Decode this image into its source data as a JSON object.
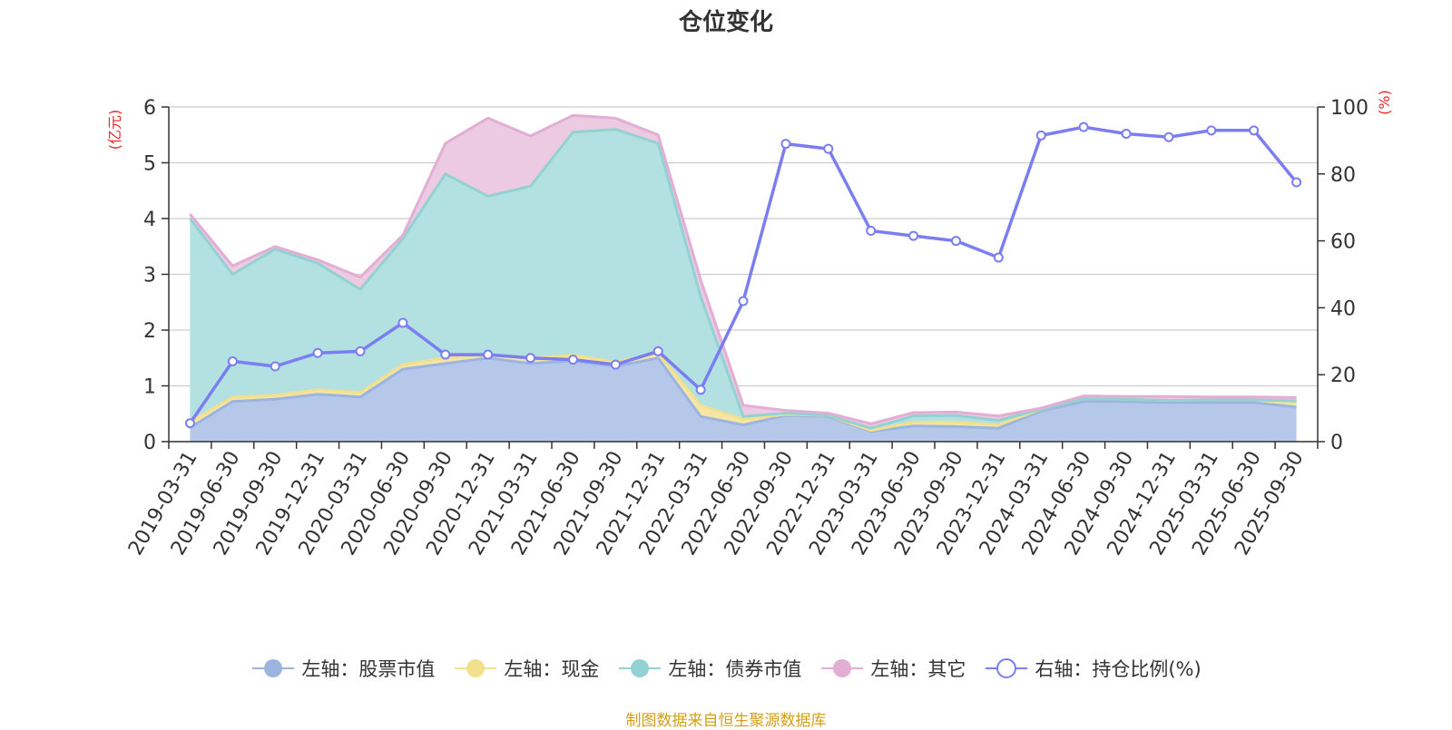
{
  "chart_data": {
    "type": "area",
    "title": "仓位变化",
    "y_left": {
      "unit": "(亿元)",
      "ylim": [
        0,
        6
      ],
      "ticks": [
        0,
        1,
        2,
        3,
        4,
        5,
        6
      ]
    },
    "y_right": {
      "unit": "(%)",
      "ylim": [
        0,
        100
      ],
      "ticks": [
        0,
        20,
        40,
        60,
        80,
        100
      ]
    },
    "categories": [
      "2019-03-31",
      "2019-06-30",
      "2019-09-30",
      "2019-12-31",
      "2020-03-31",
      "2020-06-30",
      "2020-09-30",
      "2020-12-31",
      "2021-03-31",
      "2021-06-30",
      "2021-09-30",
      "2021-12-31",
      "2022-03-31",
      "2022-06-30",
      "2022-09-30",
      "2022-12-31",
      "2023-03-31",
      "2023-06-30",
      "2023-09-30",
      "2023-12-31",
      "2024-03-31",
      "2024-06-30",
      "2024-09-30",
      "2024-12-31",
      "2025-03-31",
      "2025-06-30",
      "2025-09-30"
    ],
    "stack_series": [
      {
        "name": "左轴：股票市值",
        "color": "#b5c8ea",
        "line": "#9bb5e0",
        "values": [
          0.25,
          0.72,
          0.76,
          0.85,
          0.8,
          1.3,
          1.4,
          1.5,
          1.4,
          1.45,
          1.35,
          1.5,
          0.45,
          0.3,
          0.47,
          0.45,
          0.18,
          0.28,
          0.27,
          0.24,
          0.55,
          0.72,
          0.72,
          0.7,
          0.7,
          0.7,
          0.62
        ]
      },
      {
        "name": "左轴：现金",
        "color": "#f5e6a6",
        "line": "#f2e08e",
        "values": [
          0.1,
          0.08,
          0.07,
          0.08,
          0.08,
          0.08,
          0.1,
          0.05,
          0.1,
          0.1,
          0.08,
          0.08,
          0.2,
          0.1,
          0.02,
          0.02,
          0.02,
          0.07,
          0.08,
          0.06,
          0.03,
          0.05,
          0.04,
          0.04,
          0.05,
          0.05,
          0.08
        ]
      },
      {
        "name": "左轴：债券市值",
        "color": "#b3e0e0",
        "line": "#92d2d2",
        "values": [
          3.65,
          2.2,
          2.62,
          2.27,
          1.85,
          2.26,
          3.3,
          2.85,
          3.08,
          4.0,
          4.17,
          3.77,
          1.95,
          0.05,
          0.02,
          0.0,
          0.04,
          0.11,
          0.12,
          0.08,
          0.0,
          0.0,
          0.0,
          0.0,
          0.0,
          0.0,
          0.03
        ]
      },
      {
        "name": "左轴：其它",
        "color": "#eccae2",
        "line": "#e3aed5",
        "values": [
          0.08,
          0.15,
          0.05,
          0.06,
          0.22,
          0.06,
          0.55,
          1.4,
          0.9,
          0.3,
          0.2,
          0.15,
          0.3,
          0.2,
          0.05,
          0.04,
          0.08,
          0.06,
          0.06,
          0.08,
          0.02,
          0.05,
          0.05,
          0.07,
          0.05,
          0.05,
          0.06
        ]
      }
    ],
    "line_series": {
      "name": "右轴：持仓比例(%)",
      "color": "#7b7ef0",
      "values": [
        5.5,
        24,
        22.5,
        26.5,
        27,
        35.5,
        26,
        26,
        25,
        24.5,
        23,
        27,
        15.5,
        42,
        89,
        87.5,
        63,
        61.5,
        60,
        55,
        91.5,
        94,
        92,
        91,
        93,
        93,
        77.5
      ]
    }
  },
  "source_text": "制图数据来自恒生聚源数据库"
}
